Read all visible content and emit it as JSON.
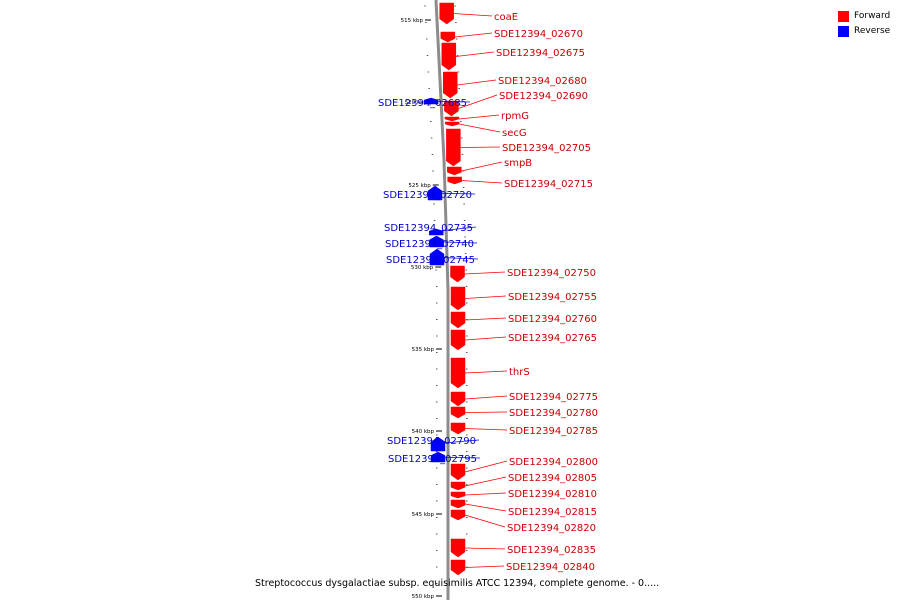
{
  "legend": {
    "forward": {
      "label": "Forward",
      "color": "#ff0000"
    },
    "reverse": {
      "label": "Reverse",
      "color": "#0000ff"
    }
  },
  "colors": {
    "forward_label": "#cc0000",
    "reverse_label": "#0000cc",
    "backbone": "#8c8c8c"
  },
  "caption": "Streptococcus dysgalactiae subsp. equisimilis ATCC 12394, complete genome. - 0.....",
  "ticks_kbp": [
    515,
    520,
    525,
    530,
    535,
    540,
    545,
    550
  ],
  "genes": [
    {
      "label": "coaE",
      "strand": "forward"
    },
    {
      "label": "SDE12394_02670",
      "strand": "forward"
    },
    {
      "label": "SDE12394_02675",
      "strand": "forward"
    },
    {
      "label": "SDE12394_02680",
      "strand": "forward"
    },
    {
      "label": "SDE12394_02690",
      "strand": "forward"
    },
    {
      "label": "rpmG",
      "strand": "forward"
    },
    {
      "label": "secG",
      "strand": "forward"
    },
    {
      "label": "SDE12394_02705",
      "strand": "forward"
    },
    {
      "label": "smpB",
      "strand": "forward"
    },
    {
      "label": "SDE12394_02715",
      "strand": "forward"
    },
    {
      "label": "SDE12394_02685",
      "strand": "reverse"
    },
    {
      "label": "SDE12394_02720",
      "strand": "reverse"
    },
    {
      "label": "SDE12394_02735",
      "strand": "reverse"
    },
    {
      "label": "SDE12394_02740",
      "strand": "reverse"
    },
    {
      "label": "SDE12394_02745",
      "strand": "reverse"
    },
    {
      "label": "SDE12394_02750",
      "strand": "forward"
    },
    {
      "label": "SDE12394_02755",
      "strand": "forward"
    },
    {
      "label": "SDE12394_02760",
      "strand": "forward"
    },
    {
      "label": "SDE12394_02765",
      "strand": "forward"
    },
    {
      "label": "thrS",
      "strand": "forward"
    },
    {
      "label": "SDE12394_02775",
      "strand": "forward"
    },
    {
      "label": "SDE12394_02780",
      "strand": "forward"
    },
    {
      "label": "SDE12394_02785",
      "strand": "forward"
    },
    {
      "label": "SDE12394_02790",
      "strand": "reverse"
    },
    {
      "label": "SDE12394_02795",
      "strand": "reverse"
    },
    {
      "label": "SDE12394_02800",
      "strand": "forward"
    },
    {
      "label": "SDE12394_02805",
      "strand": "forward"
    },
    {
      "label": "SDE12394_02810",
      "strand": "forward"
    },
    {
      "label": "SDE12394_02815",
      "strand": "forward"
    },
    {
      "label": "SDE12394_02820",
      "strand": "forward"
    },
    {
      "label": "SDE12394_02835",
      "strand": "forward"
    },
    {
      "label": "SDE12394_02840",
      "strand": "forward"
    }
  ]
}
